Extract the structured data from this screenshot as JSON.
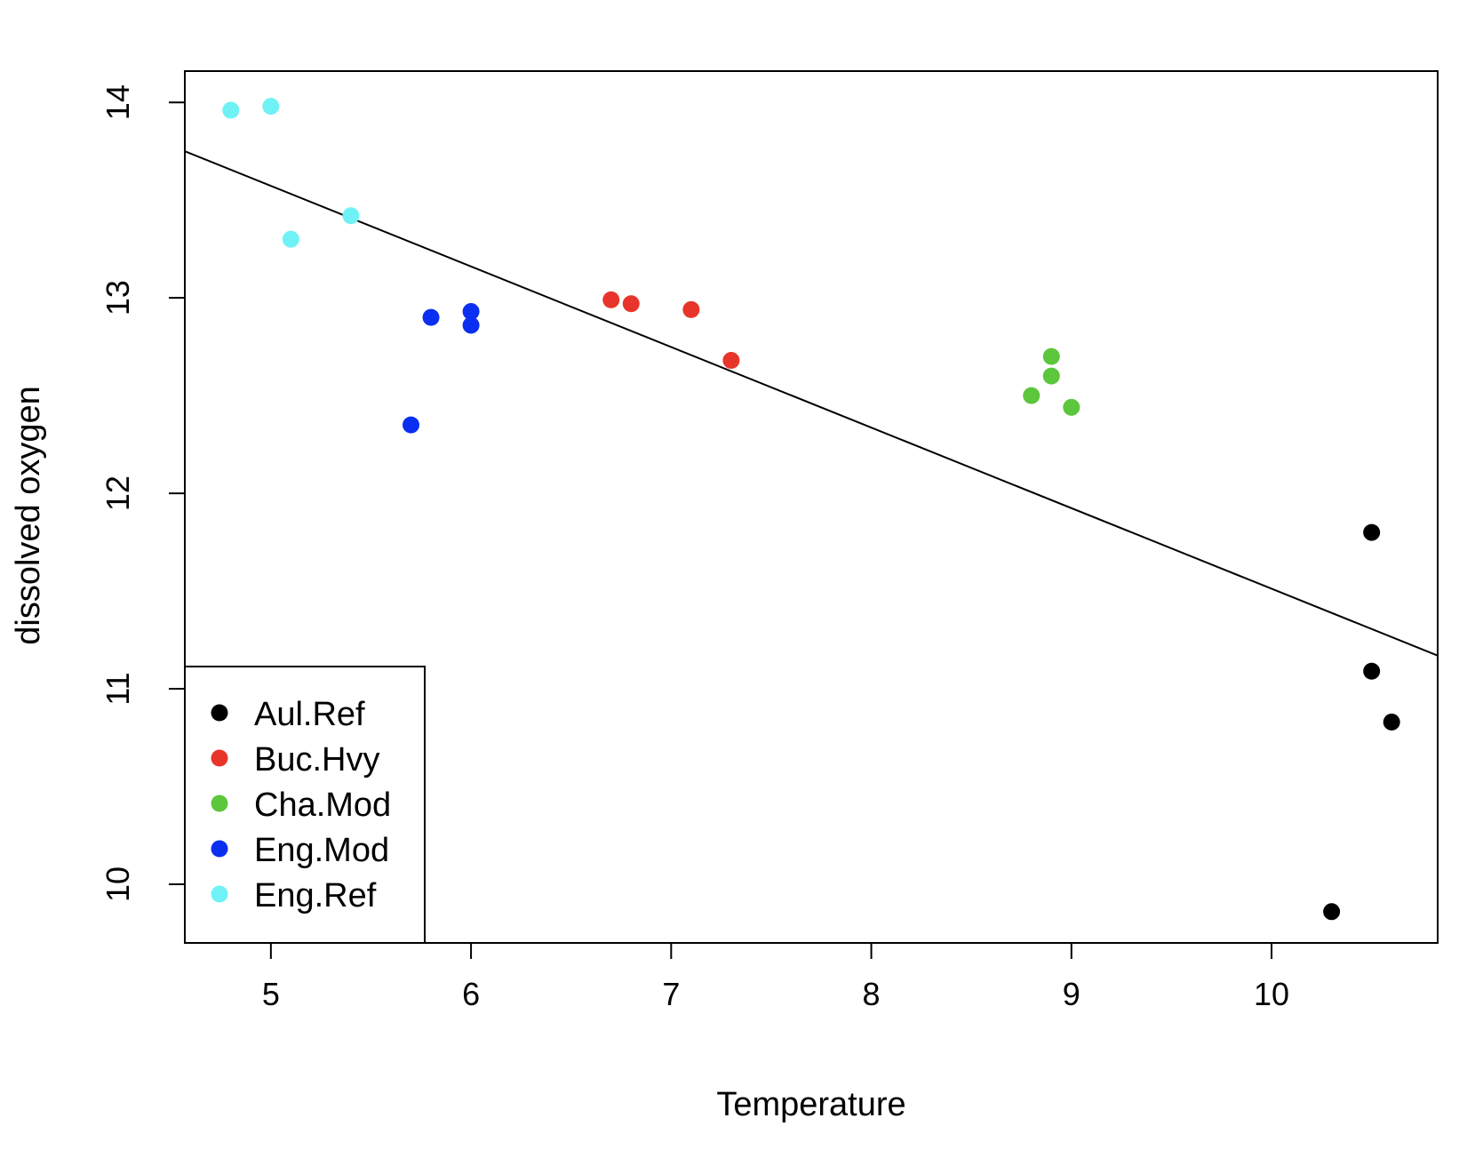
{
  "chart_data": {
    "type": "scatter",
    "title": "",
    "xlabel": "Temperature",
    "ylabel": "dissolved oxygen",
    "xlim": [
      4.57,
      10.83
    ],
    "ylim": [
      9.7,
      14.16
    ],
    "xticks": [
      5,
      6,
      7,
      8,
      9,
      10
    ],
    "yticks": [
      10,
      11,
      12,
      13,
      14
    ],
    "grid": false,
    "legend_position": "bottom-left",
    "series": [
      {
        "name": "Aul.Ref",
        "color": "#000000",
        "points": [
          [
            10.5,
            11.8
          ],
          [
            10.5,
            11.09
          ],
          [
            10.6,
            10.83
          ],
          [
            10.3,
            9.86
          ]
        ]
      },
      {
        "name": "Buc.Hvy",
        "color": "#e8352b",
        "points": [
          [
            6.7,
            12.99
          ],
          [
            6.8,
            12.97
          ],
          [
            7.1,
            12.94
          ],
          [
            7.3,
            12.68
          ]
        ]
      },
      {
        "name": "Cha.Mod",
        "color": "#5cc63c",
        "points": [
          [
            8.9,
            12.7
          ],
          [
            8.9,
            12.6
          ],
          [
            8.8,
            12.5
          ],
          [
            9.0,
            12.44
          ]
        ]
      },
      {
        "name": "Eng.Mod",
        "color": "#0a2ff0",
        "points": [
          [
            5.8,
            12.9
          ],
          [
            6.0,
            12.93
          ],
          [
            6.0,
            12.86
          ],
          [
            5.7,
            12.35
          ]
        ]
      },
      {
        "name": "Eng.Ref",
        "color": "#6ef2f5",
        "points": [
          [
            4.8,
            13.96
          ],
          [
            5.0,
            13.98
          ],
          [
            5.1,
            13.3
          ],
          [
            5.4,
            13.42
          ]
        ]
      }
    ],
    "regression_line": {
      "x": [
        4.57,
        10.83
      ],
      "y": [
        13.75,
        11.17
      ],
      "color": "#000000"
    }
  }
}
